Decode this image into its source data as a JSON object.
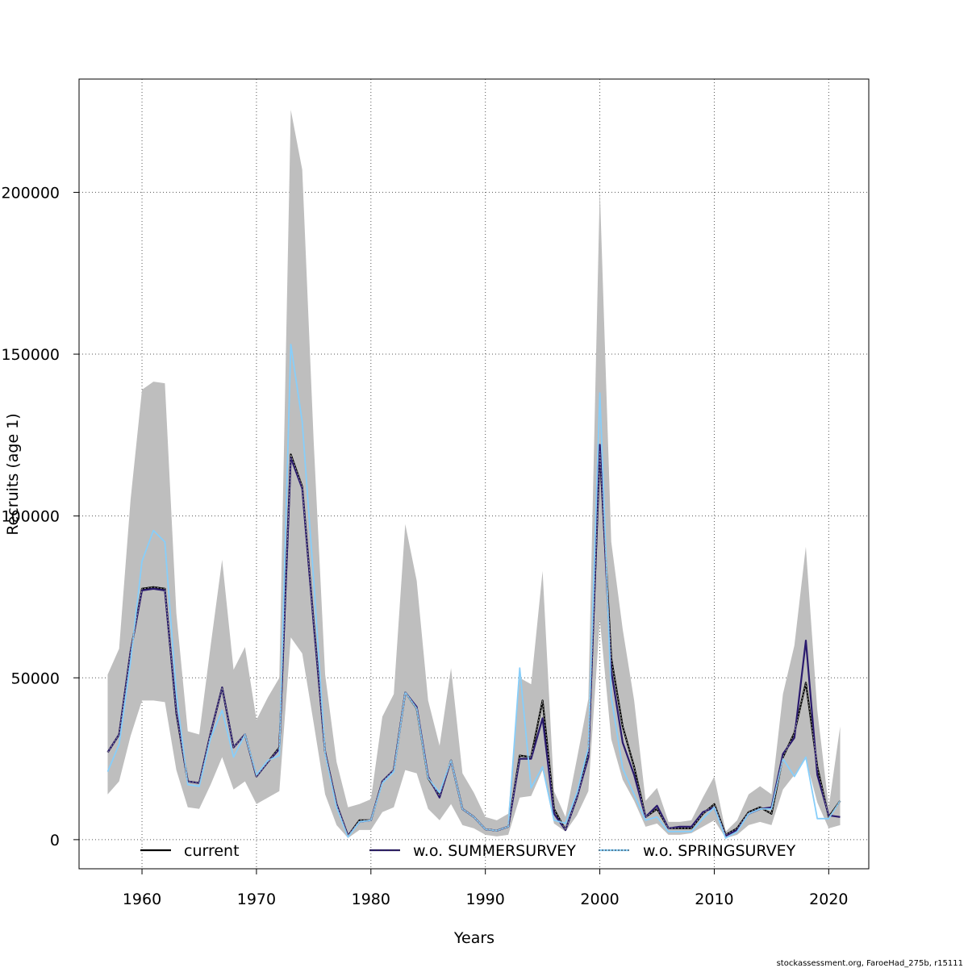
{
  "chart_data": {
    "type": "line",
    "title": "",
    "xlabel": "Years",
    "ylabel": "Recruits (age 1)",
    "xlim": [
      1954.5,
      2023.5
    ],
    "ylim": [
      -9000,
      235000
    ],
    "x_ticks": [
      1960,
      1970,
      1980,
      1990,
      2000,
      2010,
      2020
    ],
    "y_ticks": [
      0,
      50000,
      100000,
      150000,
      200000
    ],
    "y_tick_labels": [
      "0",
      "50000",
      "100000",
      "150000",
      "200000"
    ],
    "grid": true,
    "legend_position": "bottom",
    "x": [
      1957,
      1958,
      1959,
      1960,
      1961,
      1962,
      1963,
      1964,
      1965,
      1966,
      1967,
      1968,
      1969,
      1970,
      1971,
      1972,
      1973,
      1974,
      1975,
      1976,
      1977,
      1978,
      1979,
      1980,
      1981,
      1982,
      1983,
      1984,
      1985,
      1986,
      1987,
      1988,
      1989,
      1990,
      1991,
      1992,
      1993,
      1994,
      1995,
      1996,
      1997,
      1998,
      1999,
      2000,
      2001,
      2002,
      2003,
      2004,
      2005,
      2006,
      2007,
      2008,
      2009,
      2010,
      2011,
      2012,
      2013,
      2014,
      2015,
      2016,
      2017,
      2018,
      2019,
      2020,
      2021
    ],
    "confidence_band": {
      "upper": [
        51000,
        59000,
        105000,
        139000,
        141500,
        141000,
        70000,
        33500,
        32500,
        60000,
        86500,
        52500,
        59500,
        37000,
        44000,
        50000,
        225500,
        207000,
        123000,
        51000,
        24000,
        10000,
        11000,
        12500,
        38000,
        45000,
        97500,
        80000,
        43000,
        29000,
        53000,
        20500,
        14500,
        7000,
        6000,
        8000,
        50000,
        48000,
        83000,
        15000,
        7000,
        25000,
        43500,
        201000,
        92000,
        65000,
        43000,
        12000,
        16000,
        5500,
        5500,
        6000,
        13000,
        19500,
        2500,
        6000,
        14000,
        16500,
        14000,
        45000,
        60000,
        90500,
        40000,
        10000,
        35000
      ],
      "lower": [
        14000,
        18000,
        32000,
        43000,
        43000,
        42500,
        21500,
        10000,
        9500,
        17000,
        25500,
        15500,
        18000,
        11000,
        13000,
        15000,
        62500,
        57500,
        36000,
        14000,
        4500,
        500,
        3000,
        3000,
        8500,
        10000,
        21500,
        20500,
        9500,
        6000,
        11000,
        4500,
        3500,
        1500,
        1000,
        1500,
        13000,
        13500,
        21500,
        5000,
        2500,
        7500,
        15000,
        68000,
        31000,
        18500,
        12000,
        4000,
        5000,
        1500,
        1500,
        2000,
        4000,
        6000,
        500,
        1500,
        4500,
        5500,
        4500,
        15500,
        20000,
        25000,
        11500,
        3500,
        4500
      ]
    },
    "series": [
      {
        "name": "current",
        "color": "#000000",
        "values": [
          27000,
          32500,
          58000,
          77500,
          78000,
          77500,
          39000,
          18000,
          17500,
          33000,
          47000,
          28500,
          32500,
          19500,
          24000,
          28500,
          119000,
          109000,
          67000,
          27000,
          11000,
          1200,
          6000,
          6000,
          18000,
          21500,
          45500,
          40500,
          19000,
          13500,
          24500,
          9500,
          7000,
          3200,
          2800,
          4000,
          26000,
          25500,
          43000,
          9500,
          3000,
          13000,
          26500,
          120000,
          56000,
          35000,
          22500,
          7000,
          9500,
          3500,
          3500,
          3500,
          8000,
          11000,
          1500,
          3500,
          8500,
          10000,
          8000,
          25500,
          33000,
          48500,
          22500,
          7000,
          12000
        ]
      },
      {
        "name": "w.o. SUMMERSURVEY",
        "color": "#2a1a6e",
        "values": [
          27000,
          32500,
          58000,
          77000,
          77500,
          77000,
          39500,
          18000,
          17500,
          33000,
          47000,
          28500,
          32500,
          19500,
          24000,
          28000,
          118000,
          108500,
          66500,
          27000,
          11000,
          1200,
          5500,
          6000,
          18000,
          21500,
          45500,
          41000,
          19500,
          13000,
          24500,
          9500,
          7000,
          3200,
          2800,
          4000,
          25000,
          25000,
          37500,
          8000,
          3000,
          13000,
          25500,
          122000,
          52000,
          30000,
          20000,
          7000,
          10500,
          3500,
          4000,
          4000,
          8500,
          10000,
          1200,
          3000,
          8000,
          9500,
          10000,
          26500,
          31500,
          61500,
          20000,
          7500,
          7000
        ]
      },
      {
        "name": "w.o. SPRINGSURVEY",
        "color": "#87cefa",
        "values": [
          21000,
          29500,
          55000,
          86000,
          95500,
          92000,
          45000,
          17000,
          16500,
          31500,
          40000,
          25500,
          32500,
          20000,
          24500,
          26000,
          153000,
          129000,
          80000,
          26500,
          10000,
          800,
          5500,
          6000,
          17500,
          21000,
          45500,
          40500,
          19000,
          14500,
          24500,
          9500,
          7000,
          3200,
          2800,
          4000,
          53000,
          16000,
          22500,
          6000,
          5000,
          14500,
          28500,
          138000,
          44000,
          22000,
          14000,
          6000,
          7000,
          2500,
          2500,
          2500,
          6500,
          10000,
          500,
          2500,
          8000,
          9500,
          9500,
          25000,
          19500,
          25500,
          6500,
          6500,
          12000
        ]
      }
    ]
  },
  "footer": "stockassessment.org, FaroeHad_275b, r15111"
}
